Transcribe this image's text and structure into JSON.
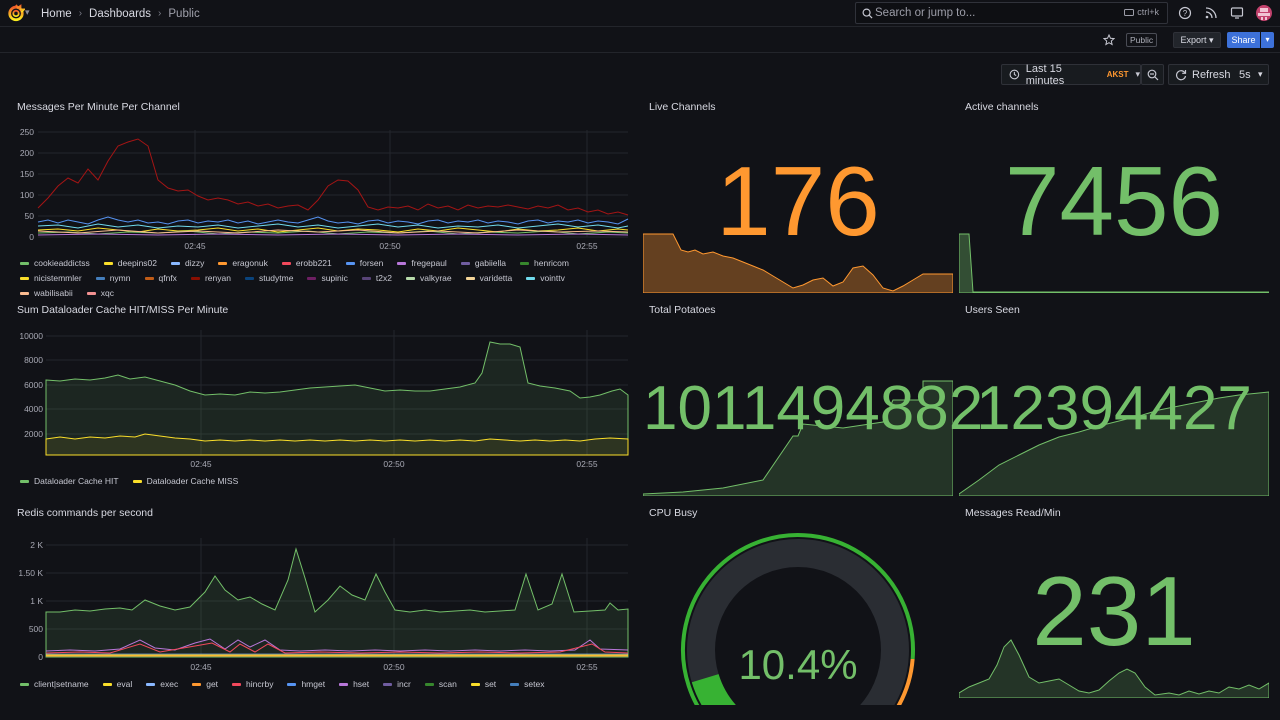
{
  "breadcrumb": {
    "home": "Home",
    "dashboards": "Dashboards",
    "current": "Public"
  },
  "search": {
    "placeholder": "Search or jump to...",
    "shortcut": "ctrl+k"
  },
  "toolbar": {
    "public_badge": "Public",
    "export_label": "Export",
    "share_label": "Share"
  },
  "time_picker": {
    "range": "Last 15 minutes",
    "timezone": "AKST"
  },
  "refresh": {
    "label": "Refresh",
    "interval": "5s"
  },
  "panels": {
    "messages_per_minute": {
      "title": "Messages Per Minute Per Channel",
      "y_ticks": [
        "250",
        "200",
        "150",
        "100",
        "50",
        "0"
      ],
      "x_ticks": [
        "02:45",
        "02:50",
        "02:55"
      ],
      "legend": [
        {
          "name": "cookieaddictss",
          "color": "#73bf69"
        },
        {
          "name": "deepins02",
          "color": "#fade2a"
        },
        {
          "name": "dizzy",
          "color": "#8ab8ff"
        },
        {
          "name": "eragonuk",
          "color": "#ff9830"
        },
        {
          "name": "erobb221",
          "color": "#f2495c"
        },
        {
          "name": "forsen",
          "color": "#5794f2"
        },
        {
          "name": "fregepaul",
          "color": "#b877d9"
        },
        {
          "name": "gabiiella",
          "color": "#705da0"
        },
        {
          "name": "henricom",
          "color": "#37872d"
        },
        {
          "name": "nicistemmler",
          "color": "#fade2a"
        },
        {
          "name": "nymn",
          "color": "#447ebc"
        },
        {
          "name": "qfnfx",
          "color": "#c15c17"
        },
        {
          "name": "renyan",
          "color": "#890f02"
        },
        {
          "name": "studytme",
          "color": "#0a437c"
        },
        {
          "name": "supinic",
          "color": "#6d1f62"
        },
        {
          "name": "t2x2",
          "color": "#584477"
        },
        {
          "name": "valkyrae",
          "color": "#b7dbab"
        },
        {
          "name": "varidetta",
          "color": "#f4d598"
        },
        {
          "name": "vointtv",
          "color": "#70dbed"
        },
        {
          "name": "wabilisabii",
          "color": "#f9ba8f"
        },
        {
          "name": "xqc",
          "color": "#f29191"
        }
      ]
    },
    "live_channels": {
      "title": "Live Channels",
      "value": "176",
      "color": "#ff9830"
    },
    "active_channels": {
      "title": "Active channels",
      "value": "7456",
      "color": "#73bf69"
    },
    "dataloader": {
      "title": "Sum Dataloader Cache HIT/MISS Per Minute",
      "y_ticks": [
        "10000",
        "8000",
        "6000",
        "4000",
        "2000"
      ],
      "x_ticks": [
        "02:45",
        "02:50",
        "02:55"
      ],
      "legend": [
        {
          "name": "Dataloader Cache HIT",
          "color": "#73bf69"
        },
        {
          "name": "Dataloader Cache MISS",
          "color": "#fade2a"
        }
      ]
    },
    "total_potatoes": {
      "title": "Total Potatoes",
      "value": "1011494882",
      "color": "#73bf69"
    },
    "users_seen": {
      "title": "Users Seen",
      "value": "12394427",
      "color": "#73bf69"
    },
    "redis": {
      "title": "Redis commands per second",
      "y_ticks": [
        "2 K",
        "1.50 K",
        "1 K",
        "500",
        "0"
      ],
      "x_ticks": [
        "02:45",
        "02:50",
        "02:55"
      ],
      "legend": [
        {
          "name": "client|setname",
          "color": "#73bf69"
        },
        {
          "name": "eval",
          "color": "#fade2a"
        },
        {
          "name": "exec",
          "color": "#8ab8ff"
        },
        {
          "name": "get",
          "color": "#ff9830"
        },
        {
          "name": "hincrby",
          "color": "#f2495c"
        },
        {
          "name": "hmget",
          "color": "#5794f2"
        },
        {
          "name": "hset",
          "color": "#b877d9"
        },
        {
          "name": "incr",
          "color": "#705da0"
        },
        {
          "name": "scan",
          "color": "#37872d"
        },
        {
          "name": "set",
          "color": "#fade2a"
        },
        {
          "name": "setex",
          "color": "#447ebc"
        }
      ]
    },
    "cpu_busy": {
      "title": "CPU Busy",
      "value": "10.4%",
      "percent": 10.4,
      "color": "#73bf69"
    },
    "messages_read": {
      "title": "Messages Read/Min",
      "value": "231",
      "color": "#73bf69"
    }
  },
  "icons": [
    "grafana-logo-icon",
    "search-icon",
    "help-icon",
    "rss-icon",
    "monitor-icon",
    "star-icon",
    "clock-icon",
    "zoom-out-icon",
    "refresh-icon"
  ]
}
